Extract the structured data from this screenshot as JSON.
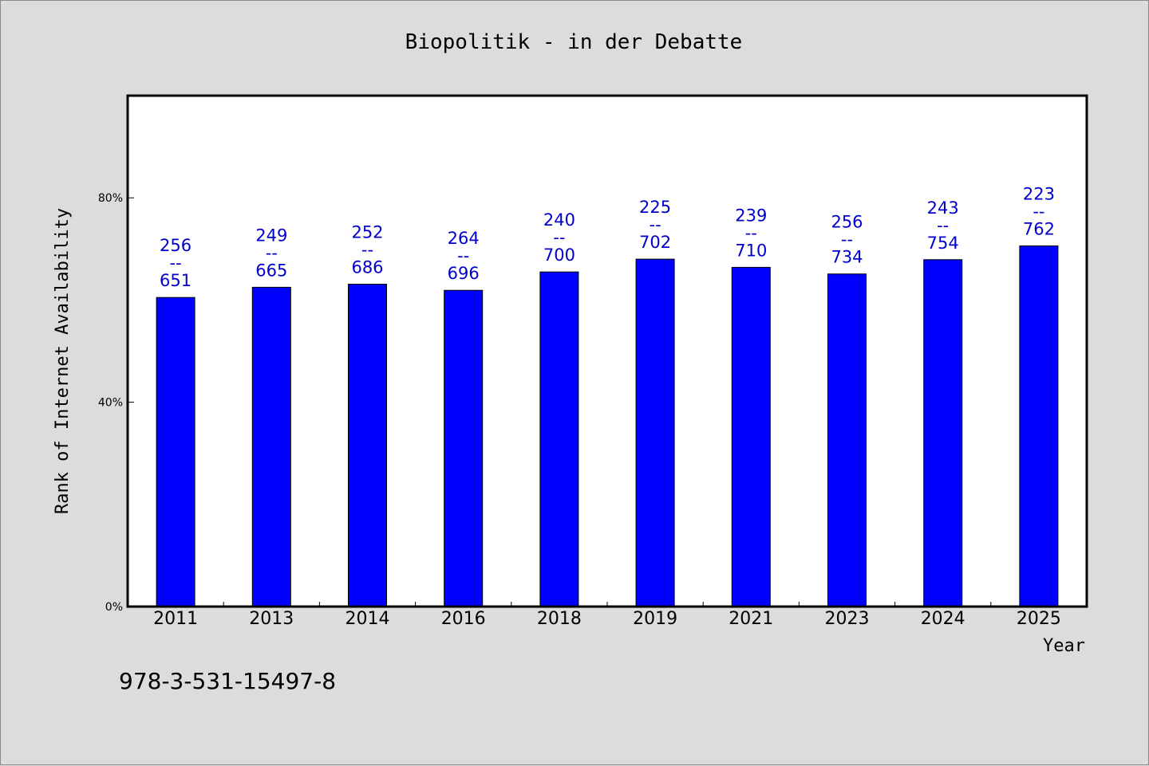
{
  "chart_data": {
    "type": "bar",
    "title": "Biopolitik - in der Debatte",
    "xlabel": "Year",
    "ylabel": "Rank of Internet Availability",
    "categories": [
      "2011",
      "2013",
      "2014",
      "2016",
      "2018",
      "2019",
      "2021",
      "2023",
      "2024",
      "2025"
    ],
    "values": [
      60.5,
      62.5,
      63.1,
      61.9,
      65.5,
      68.0,
      66.4,
      65.1,
      67.9,
      70.6
    ],
    "bar_labels": [
      {
        "top": "256",
        "sep": "--",
        "bottom": "651"
      },
      {
        "top": "249",
        "sep": "--",
        "bottom": "665"
      },
      {
        "top": "252",
        "sep": "--",
        "bottom": "686"
      },
      {
        "top": "264",
        "sep": "--",
        "bottom": "696"
      },
      {
        "top": "240",
        "sep": "--",
        "bottom": "700"
      },
      {
        "top": "225",
        "sep": "--",
        "bottom": "702"
      },
      {
        "top": "239",
        "sep": "--",
        "bottom": "710"
      },
      {
        "top": "256",
        "sep": "--",
        "bottom": "734"
      },
      {
        "top": "243",
        "sep": "--",
        "bottom": "754"
      },
      {
        "top": "223",
        "sep": "--",
        "bottom": "762"
      }
    ],
    "yticks": [
      {
        "value": 0,
        "label": "0%"
      },
      {
        "value": 40,
        "label": "40%"
      },
      {
        "value": 80,
        "label": "80%"
      }
    ],
    "ylim": [
      0,
      100
    ],
    "grid": false,
    "bar_color": "#0000ff",
    "label_color": "#0000cc",
    "background": "#dcdcdc",
    "plot_background": "#ffffff"
  },
  "footer": {
    "isbn": "978-3-531-15497-8"
  }
}
